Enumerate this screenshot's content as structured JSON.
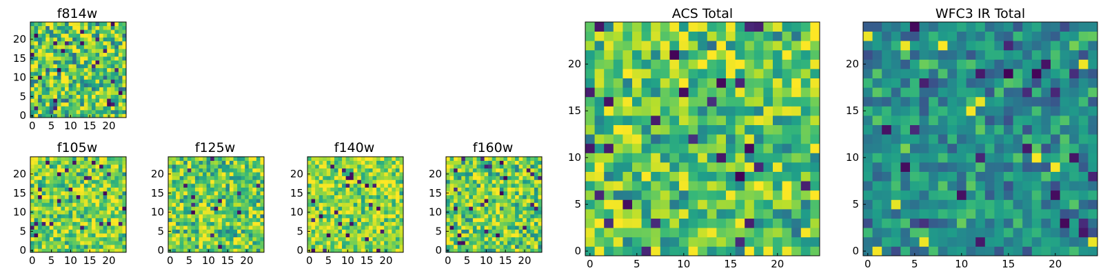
{
  "figure": {
    "panels_count": 7
  },
  "chart_data": [
    {
      "type": "heatmap",
      "title": "f814w",
      "colormap": "viridis",
      "grid_cols": 25,
      "grid_rows": 25,
      "xlim": [
        0,
        25
      ],
      "ylim": [
        0,
        25
      ],
      "xticks": [
        0,
        5,
        10,
        15,
        20
      ],
      "yticks": [
        0,
        5,
        10,
        15,
        20
      ],
      "value_range": [
        0,
        1
      ],
      "mean_level": 0.74,
      "spread": 0.34,
      "seed": 11
    },
    {
      "type": "heatmap",
      "title": "f105w",
      "colormap": "viridis",
      "grid_cols": 25,
      "grid_rows": 25,
      "xlim": [
        0,
        25
      ],
      "ylim": [
        0,
        25
      ],
      "xticks": [
        0,
        5,
        10,
        15,
        20
      ],
      "yticks": [
        0,
        5,
        10,
        15,
        20
      ],
      "value_range": [
        0,
        1
      ],
      "mean_level": 0.8,
      "spread": 0.26,
      "seed": 23
    },
    {
      "type": "heatmap",
      "title": "f125w",
      "colormap": "viridis",
      "grid_cols": 25,
      "grid_rows": 25,
      "xlim": [
        0,
        25
      ],
      "ylim": [
        0,
        25
      ],
      "xticks": [
        0,
        5,
        10,
        15,
        20
      ],
      "yticks": [
        0,
        5,
        10,
        15,
        20
      ],
      "value_range": [
        0,
        1
      ],
      "mean_level": 0.78,
      "spread": 0.28,
      "seed": 37
    },
    {
      "type": "heatmap",
      "title": "f140w",
      "colormap": "viridis",
      "grid_cols": 25,
      "grid_rows": 25,
      "xlim": [
        0,
        25
      ],
      "ylim": [
        0,
        25
      ],
      "xticks": [
        0,
        5,
        10,
        15,
        20
      ],
      "yticks": [
        0,
        5,
        10,
        15,
        20
      ],
      "value_range": [
        0,
        1
      ],
      "mean_level": 0.83,
      "spread": 0.24,
      "seed": 41
    },
    {
      "type": "heatmap",
      "title": "f160w",
      "colormap": "viridis",
      "grid_cols": 25,
      "grid_rows": 25,
      "xlim": [
        0,
        25
      ],
      "ylim": [
        0,
        25
      ],
      "xticks": [
        0,
        5,
        10,
        15,
        20
      ],
      "yticks": [
        0,
        5,
        10,
        15,
        20
      ],
      "value_range": [
        0,
        1
      ],
      "mean_level": 0.78,
      "spread": 0.3,
      "seed": 53
    },
    {
      "type": "heatmap",
      "title": "ACS Total",
      "colormap": "viridis",
      "grid_cols": 25,
      "grid_rows": 25,
      "xlim": [
        0,
        25
      ],
      "ylim": [
        0,
        25
      ],
      "xticks": [
        0,
        5,
        10,
        15,
        20
      ],
      "yticks": [
        0,
        5,
        10,
        15,
        20
      ],
      "value_range": [
        0,
        1
      ],
      "mean_level": 0.72,
      "spread": 0.26,
      "seed": 67
    },
    {
      "type": "heatmap",
      "title": "WFC3 IR Total",
      "colormap": "viridis",
      "grid_cols": 25,
      "grid_rows": 25,
      "xlim": [
        0,
        25
      ],
      "ylim": [
        0,
        25
      ],
      "xticks": [
        0,
        5,
        10,
        15,
        20
      ],
      "yticks": [
        0,
        5,
        10,
        15,
        20
      ],
      "value_range": [
        0,
        1
      ],
      "mean_level": 0.5,
      "spread": 0.22,
      "seed": 79
    }
  ]
}
